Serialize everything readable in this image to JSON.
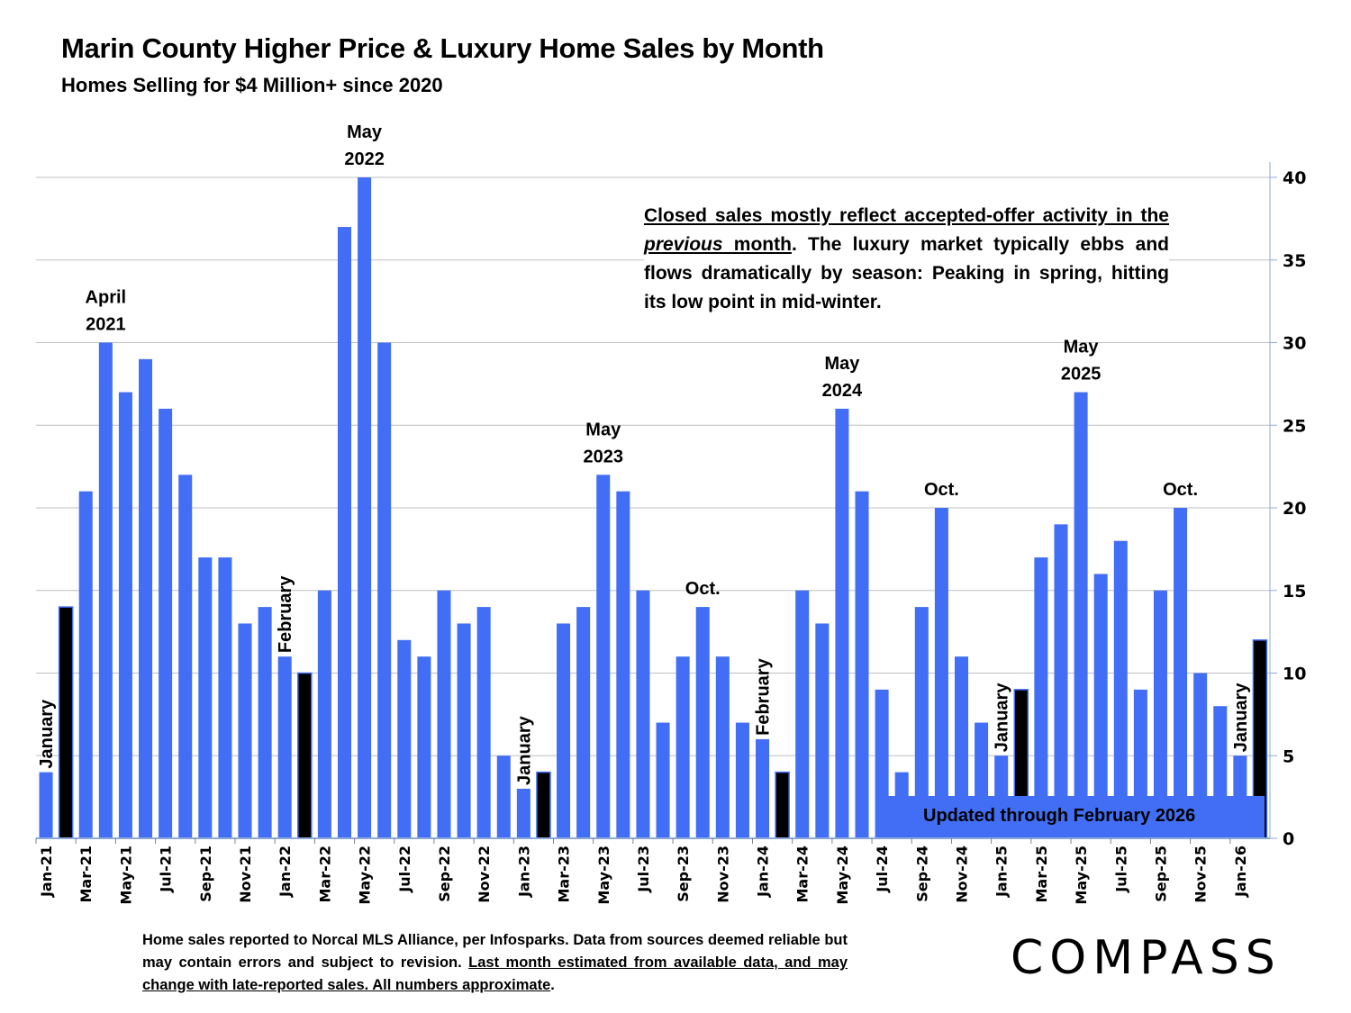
{
  "header": {
    "title": "Marin County Higher Price & Luxury Home Sales by Month",
    "subtitle": "Homes Selling for $4 Million+ since 2020"
  },
  "note": {
    "underlined_part1": "Closed sales mostly reflect accepted-offer activity in the ",
    "italic_word": "previous",
    "underlined_part2": " month",
    "rest": ". The luxury market typically ebbs and flows dramatically by season: Peaking in spring, hitting its low point in mid-winter."
  },
  "updated_label": "Updated through February 2026",
  "footer": {
    "plain": "Home sales reported to Norcal MLS Alliance, per Infosparks. Data from sources deemed reliable but may contain errors and subject to revision.  ",
    "underlined": "Last month estimated from available data, and may change with late-reported sales. All numbers approximate",
    "end": "."
  },
  "logo": "COMPASS",
  "colors": {
    "bar": "#416ef5",
    "highlight_bar": "#000000",
    "grid": "#bfbfbf",
    "axis": "#8eaadb"
  },
  "chart_data": {
    "type": "bar",
    "title": "Marin County Higher Price & Luxury Home Sales by Month",
    "xlabel": "",
    "ylabel": "",
    "ylim": [
      0,
      40
    ],
    "yticks": [
      0,
      5,
      10,
      15,
      20,
      25,
      30,
      35,
      40
    ],
    "y_axis_side": "right",
    "grid": true,
    "categories": [
      "Jan-21",
      "Feb-21",
      "Mar-21",
      "Apr-21",
      "May-21",
      "Jun-21",
      "Jul-21",
      "Aug-21",
      "Sep-21",
      "Oct-21",
      "Nov-21",
      "Dec-21",
      "Jan-22",
      "Feb-22",
      "Mar-22",
      "Apr-22",
      "May-22",
      "Jun-22",
      "Jul-22",
      "Aug-22",
      "Sep-22",
      "Oct-22",
      "Nov-22",
      "Dec-22",
      "Jan-23",
      "Feb-23",
      "Mar-23",
      "Apr-23",
      "May-23",
      "Jun-23",
      "Jul-23",
      "Aug-23",
      "Sep-23",
      "Oct-23",
      "Nov-23",
      "Dec-23",
      "Jan-24",
      "Feb-24",
      "Mar-24",
      "Apr-24",
      "May-24",
      "Jun-24",
      "Jul-24",
      "Aug-24",
      "Sep-24",
      "Oct-24",
      "Nov-24",
      "Dec-24",
      "Jan-25",
      "Feb-25",
      "Mar-25",
      "Apr-25",
      "May-25",
      "Jun-25",
      "Jul-25",
      "Aug-25",
      "Sep-25",
      "Oct-25",
      "Nov-25",
      "Dec-25",
      "Jan-26",
      "Feb-26"
    ],
    "tick_labels": [
      "Jan-21",
      "Mar-21",
      "May-21",
      "Jul-21",
      "Sep-21",
      "Nov-21",
      "Jan-22",
      "Mar-22",
      "May-22",
      "Jul-22",
      "Sep-22",
      "Nov-22",
      "Jan-23",
      "Mar-23",
      "May-23",
      "Jul-23",
      "Sep-23",
      "Nov-23",
      "Jan-24",
      "Mar-24",
      "May-24",
      "Jul-24",
      "Sep-24",
      "Nov-24",
      "Jan-25",
      "Mar-25",
      "May-25",
      "Jul-25",
      "Sep-25",
      "Nov-25",
      "Jan-26"
    ],
    "values": [
      4,
      14,
      21,
      30,
      27,
      29,
      26,
      22,
      17,
      17,
      13,
      14,
      11,
      10,
      15,
      37,
      40,
      30,
      12,
      11,
      15,
      13,
      14,
      5,
      3,
      4,
      13,
      14,
      22,
      21,
      15,
      7,
      11,
      14,
      11,
      7,
      6,
      4,
      15,
      13,
      26,
      21,
      9,
      4,
      14,
      20,
      11,
      7,
      5,
      9,
      17,
      19,
      27,
      16,
      18,
      9,
      15,
      20,
      10,
      8,
      5,
      12
    ],
    "highlighted": [
      "Feb-21",
      "Feb-22",
      "Feb-23",
      "Feb-24",
      "Feb-25",
      "Feb-26"
    ],
    "annotations": [
      {
        "category": "Apr-21",
        "lines": [
          "April",
          "2021"
        ],
        "orientation": "horizontal"
      },
      {
        "category": "May-22",
        "lines": [
          "May",
          "2022"
        ],
        "orientation": "horizontal"
      },
      {
        "category": "May-23",
        "lines": [
          "May",
          "2023"
        ],
        "orientation": "horizontal"
      },
      {
        "category": "Oct-23",
        "lines": [
          "Oct."
        ],
        "orientation": "horizontal"
      },
      {
        "category": "May-24",
        "lines": [
          "May",
          "2024"
        ],
        "orientation": "horizontal"
      },
      {
        "category": "Oct-24",
        "lines": [
          "Oct."
        ],
        "orientation": "horizontal"
      },
      {
        "category": "May-25",
        "lines": [
          "May",
          "2025"
        ],
        "orientation": "horizontal"
      },
      {
        "category": "Oct-25",
        "lines": [
          "Oct."
        ],
        "orientation": "horizontal"
      },
      {
        "category": "Jan-21",
        "lines": [
          "January"
        ],
        "orientation": "vertical"
      },
      {
        "category": "Jan-22",
        "lines": [
          "February"
        ],
        "orientation": "vertical"
      },
      {
        "category": "Jan-23",
        "lines": [
          "January"
        ],
        "orientation": "vertical"
      },
      {
        "category": "Jan-24",
        "lines": [
          "February"
        ],
        "orientation": "vertical"
      },
      {
        "category": "Jan-25",
        "lines": [
          "January"
        ],
        "orientation": "vertical"
      },
      {
        "category": "Jan-26",
        "lines": [
          "January"
        ],
        "orientation": "vertical"
      }
    ]
  }
}
